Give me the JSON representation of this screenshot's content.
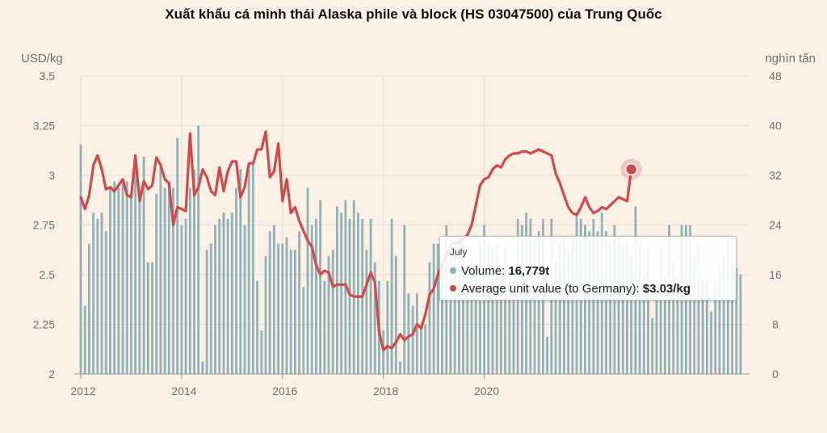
{
  "chart_data": {
    "type": "bar-line",
    "title": "Xuất khẩu cá minh thái Alaska phile và block (HS 03047500) của Trung Quốc",
    "left_axis": {
      "label": "USD/kg",
      "min": 2,
      "max": 3.5,
      "ticks": [
        "2",
        "2.25",
        "2.5",
        "2.75",
        "3",
        "3.25",
        "3.5"
      ]
    },
    "right_axis": {
      "label": "nghìn tấn",
      "min": 0,
      "max": 48,
      "ticks": [
        "0",
        "8",
        "16",
        "24",
        "32",
        "40",
        "48"
      ]
    },
    "x_axis": {
      "ticks": [
        "2012",
        "2014",
        "2016",
        "2018",
        "2020"
      ],
      "start": "2012-01",
      "step": "month"
    },
    "grid": true,
    "colors": {
      "bars": "#8fb3b8",
      "line": "#cf4b4b"
    },
    "series": [
      {
        "name": "Volume",
        "unit": "thousand t",
        "type": "bar",
        "values": [
          37,
          11,
          21,
          26,
          25,
          26,
          23,
          30,
          31,
          30,
          31,
          31,
          29,
          35,
          29,
          35,
          18,
          18,
          29,
          34,
          30,
          31,
          30,
          38,
          24,
          25,
          30,
          33,
          40,
          2,
          20,
          21,
          24,
          25,
          26,
          25,
          26,
          30,
          33,
          24,
          33,
          34,
          15,
          7,
          19,
          23,
          24,
          21,
          21,
          22,
          20,
          20,
          23,
          14,
          30,
          24,
          25,
          28,
          15,
          19,
          20,
          27,
          26,
          28,
          25,
          28,
          26,
          25,
          20,
          25,
          18,
          15,
          7,
          15,
          25,
          19,
          2,
          24,
          13,
          11,
          13,
          8,
          8,
          18,
          21,
          21,
          18,
          24,
          21,
          20,
          22,
          21,
          17,
          18,
          18,
          21,
          24,
          21,
          20,
          21,
          16,
          20,
          15,
          15,
          25,
          24,
          26,
          25,
          22,
          23,
          25,
          6,
          25,
          18,
          21,
          22,
          20,
          22,
          26,
          25,
          24,
          23,
          25,
          23,
          26,
          23,
          21,
          24,
          22,
          21,
          21,
          19,
          27,
          21,
          16,
          20,
          9,
          14,
          20,
          16,
          24,
          18,
          12,
          24,
          24,
          24,
          19,
          21,
          15,
          15,
          10,
          15,
          16,
          19,
          22,
          22,
          17,
          16
        ],
        "tooltip": {
          "month": "July",
          "label": "Volume:",
          "value": "16,779t"
        }
      },
      {
        "name": "Average unit value (to Germany)",
        "unit": "USD/kg",
        "type": "line",
        "values": [
          2.89,
          2.83,
          2.9,
          3.05,
          3.1,
          3.03,
          2.93,
          2.94,
          2.92,
          2.95,
          2.98,
          2.9,
          2.89,
          3.1,
          2.87,
          2.97,
          2.93,
          2.95,
          3.09,
          3.05,
          2.98,
          2.96,
          2.75,
          2.84,
          2.83,
          2.82,
          3.21,
          2.9,
          2.94,
          3.03,
          2.99,
          2.92,
          2.9,
          3.04,
          2.92,
          3.02,
          3.07,
          3.07,
          2.89,
          2.94,
          3.06,
          3.06,
          3.13,
          3.13,
          3.22,
          2.99,
          3.02,
          3.16,
          2.87,
          2.98,
          2.81,
          2.84,
          2.77,
          2.72,
          2.67,
          2.64,
          2.55,
          2.5,
          2.52,
          2.51,
          2.44,
          2.45,
          2.45,
          2.45,
          2.4,
          2.39,
          2.39,
          2.39,
          2.45,
          2.51,
          2.46,
          2.21,
          2.12,
          2.14,
          2.13,
          2.16,
          2.2,
          2.17,
          2.19,
          2.2,
          2.25,
          2.23,
          2.3,
          2.4,
          2.43,
          2.5,
          2.55,
          2.6,
          2.65,
          2.66,
          2.66,
          2.68,
          2.7,
          2.75,
          2.85,
          2.95,
          2.98,
          2.99,
          3.03,
          3.05,
          3.04,
          3.08,
          3.1,
          3.11,
          3.11,
          3.12,
          3.12,
          3.11,
          3.12,
          3.13,
          3.12,
          3.11,
          3.1,
          3.01,
          2.96,
          2.9,
          2.84,
          2.81,
          2.8,
          2.84,
          2.89,
          2.84,
          2.81,
          2.82,
          2.84,
          2.83,
          2.85,
          2.87,
          2.89,
          2.88,
          2.87,
          3.03
        ],
        "tooltip": {
          "label": "Average unit value (to Germany):",
          "value": "$3.03/kg"
        }
      }
    ]
  }
}
